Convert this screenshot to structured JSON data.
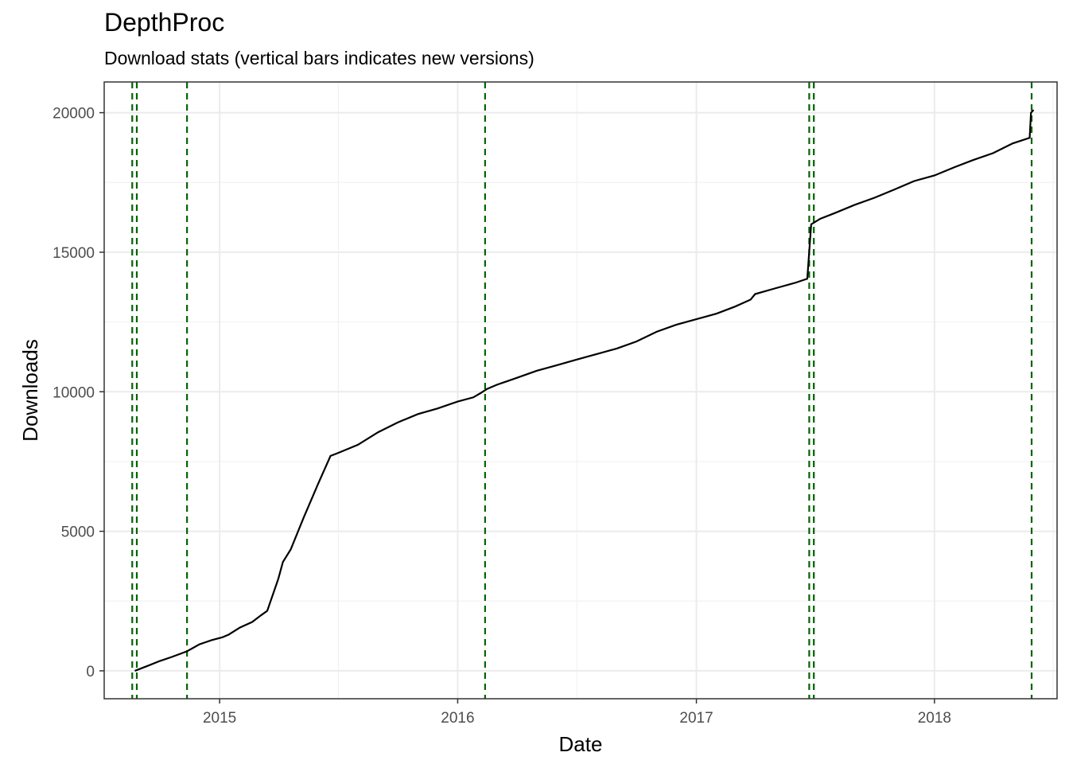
{
  "chart_data": {
    "type": "line",
    "title": "DepthProc",
    "subtitle": "Download stats (vertical bars indicates new versions)",
    "xlabel": "Date",
    "ylabel": "Downloads",
    "x_ticks": [
      "2015",
      "2016",
      "2017",
      "2018"
    ],
    "y_ticks": [
      "0",
      "5000",
      "10000",
      "15000",
      "20000"
    ],
    "xlim": [
      "2014-07-08",
      "2018-07-08"
    ],
    "ylim": [
      -1000,
      21100
    ],
    "grid": true,
    "version_lines": [
      "2014-08-20",
      "2014-08-27",
      "2014-11-12",
      "2016-02-12",
      "2017-06-23",
      "2017-06-30",
      "2018-05-30"
    ],
    "series": [
      {
        "x": [
          "2014-08-24",
          "2014-09-15",
          "2014-10-01",
          "2014-10-20",
          "2014-11-12",
          "2014-12-01",
          "2014-12-20",
          "2015-01-05",
          "2015-01-15",
          "2015-02-01",
          "2015-02-20",
          "2015-03-06",
          "2015-03-15",
          "2015-04-01",
          "2015-04-08",
          "2015-04-20",
          "2015-05-10",
          "2015-06-01",
          "2015-06-20",
          "2015-07-01",
          "2015-08-01",
          "2015-09-01",
          "2015-10-01",
          "2015-11-01",
          "2015-12-01",
          "2016-01-01",
          "2016-01-25",
          "2016-02-05",
          "2016-02-15",
          "2016-03-01",
          "2016-04-01",
          "2016-05-01",
          "2016-06-01",
          "2016-07-01",
          "2016-08-01",
          "2016-09-01",
          "2016-10-01",
          "2016-11-01",
          "2016-12-01",
          "2017-01-01",
          "2017-02-01",
          "2017-03-01",
          "2017-03-25",
          "2017-04-01",
          "2017-05-01",
          "2017-06-01",
          "2017-06-20",
          "2017-06-26",
          "2017-07-10",
          "2017-08-01",
          "2017-09-01",
          "2017-10-01",
          "2017-11-01",
          "2017-12-01",
          "2018-01-01",
          "2018-02-01",
          "2018-03-01",
          "2018-04-01",
          "2018-05-01",
          "2018-05-27",
          "2018-05-29",
          "2018-06-02"
        ],
        "y": [
          0,
          200,
          350,
          500,
          700,
          950,
          1100,
          1200,
          1300,
          1550,
          1750,
          2000,
          2150,
          3300,
          3900,
          4350,
          5500,
          6700,
          7700,
          7800,
          8100,
          8550,
          8900,
          9200,
          9400,
          9650,
          9800,
          9950,
          10100,
          10250,
          10500,
          10750,
          10950,
          11150,
          11350,
          11550,
          11800,
          12150,
          12400,
          12600,
          12800,
          13050,
          13300,
          13500,
          13700,
          13900,
          14050,
          16000,
          16200,
          16400,
          16700,
          16950,
          17250,
          17550,
          17750,
          18050,
          18300,
          18550,
          18900,
          19100,
          20000,
          20100
        ]
      }
    ]
  }
}
